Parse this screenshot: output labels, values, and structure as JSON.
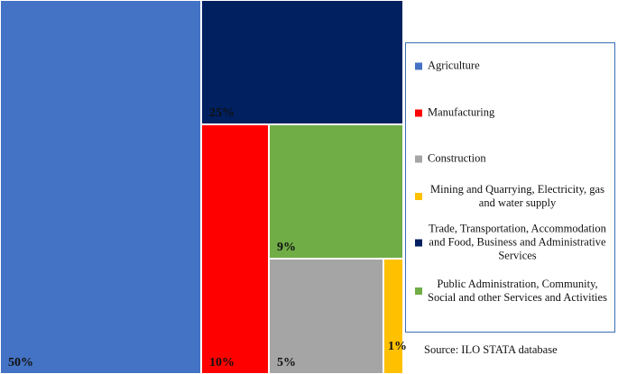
{
  "chart_data": {
    "type": "treemap",
    "title": "",
    "series": [
      {
        "name": "Agriculture",
        "value": 50,
        "label": "50%",
        "color": "#4472c4"
      },
      {
        "name": "Trade, Transportation, Accommodation and Food, Business and Administrative Services",
        "value": 25,
        "label": "25%",
        "color": "#002060"
      },
      {
        "name": "Manufacturing",
        "value": 10,
        "label": "10%",
        "color": "#ff0000"
      },
      {
        "name": "Public Administration, Community, Social and other Services and Activities",
        "value": 9,
        "label": "9%",
        "color": "#70ad47"
      },
      {
        "name": "Construction",
        "value": 5,
        "label": "5%",
        "color": "#a5a5a5"
      },
      {
        "name": "Mining and Quarrying, Electricity, gas and water supply",
        "value": 1,
        "label": "1%",
        "color": "#ffc000"
      }
    ],
    "legend": {
      "placement": "right",
      "items": [
        {
          "label": "Agriculture",
          "color": "#4472c4"
        },
        {
          "label": "Manufacturing",
          "color": "#ff0000"
        },
        {
          "label": "Construction",
          "color": "#a5a5a5"
        },
        {
          "label": "Mining and Quarrying, Electricity, gas and water supply",
          "color": "#ffc000"
        },
        {
          "label": "Trade, Transportation, Accommodation and Food, Business and Administrative Services",
          "color": "#002060"
        },
        {
          "label": "Public Administration, Community, Social and other Services and Activities",
          "color": "#70ad47"
        }
      ]
    },
    "source": "Source: ILO STATA database"
  }
}
